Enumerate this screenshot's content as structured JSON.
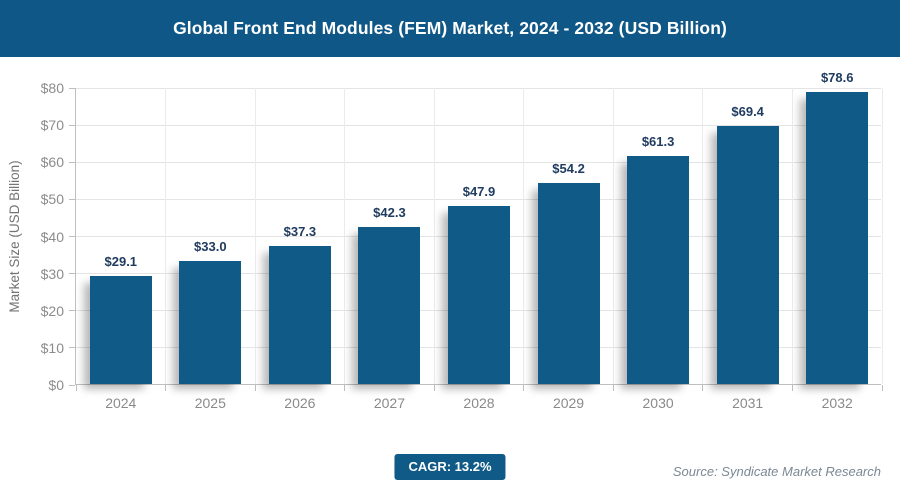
{
  "header": {
    "title": "Global Front End Modules (FEM) Market, 2024 - 2032 (USD Billion)"
  },
  "chart_data": {
    "type": "bar",
    "title": "Global Front End Modules (FEM) Market, 2024 - 2032 (USD Billion)",
    "categories": [
      "2024",
      "2025",
      "2026",
      "2027",
      "2028",
      "2029",
      "2030",
      "2031",
      "2032"
    ],
    "values": [
      29.1,
      33.0,
      37.3,
      42.3,
      47.9,
      54.2,
      61.3,
      69.4,
      78.6
    ],
    "value_labels": [
      "$29.1",
      "$33.0",
      "$37.3",
      "$42.3",
      "$47.9",
      "$54.2",
      "$61.3",
      "$69.4",
      "$78.6"
    ],
    "xlabel": "",
    "ylabel": "Market Size (USD Billion)",
    "ylim": [
      0,
      80
    ],
    "ytick_step": 10,
    "ytick_labels": [
      "$0",
      "$10",
      "$20",
      "$30",
      "$40",
      "$50",
      "$60",
      "$70",
      "$80"
    ],
    "grid": "both",
    "legend": "none",
    "bar_color": "#0F5A87"
  },
  "footer": {
    "cagr_label": "CAGR: 13.2%",
    "source": "Source: Syndicate Market Research"
  },
  "colors": {
    "brand": "#0F5A87",
    "header_bg": "#0E5786",
    "value_label_text": "#1F3B60",
    "axis_text": "#8c8c8c",
    "gridline": "#e4e4e4"
  }
}
